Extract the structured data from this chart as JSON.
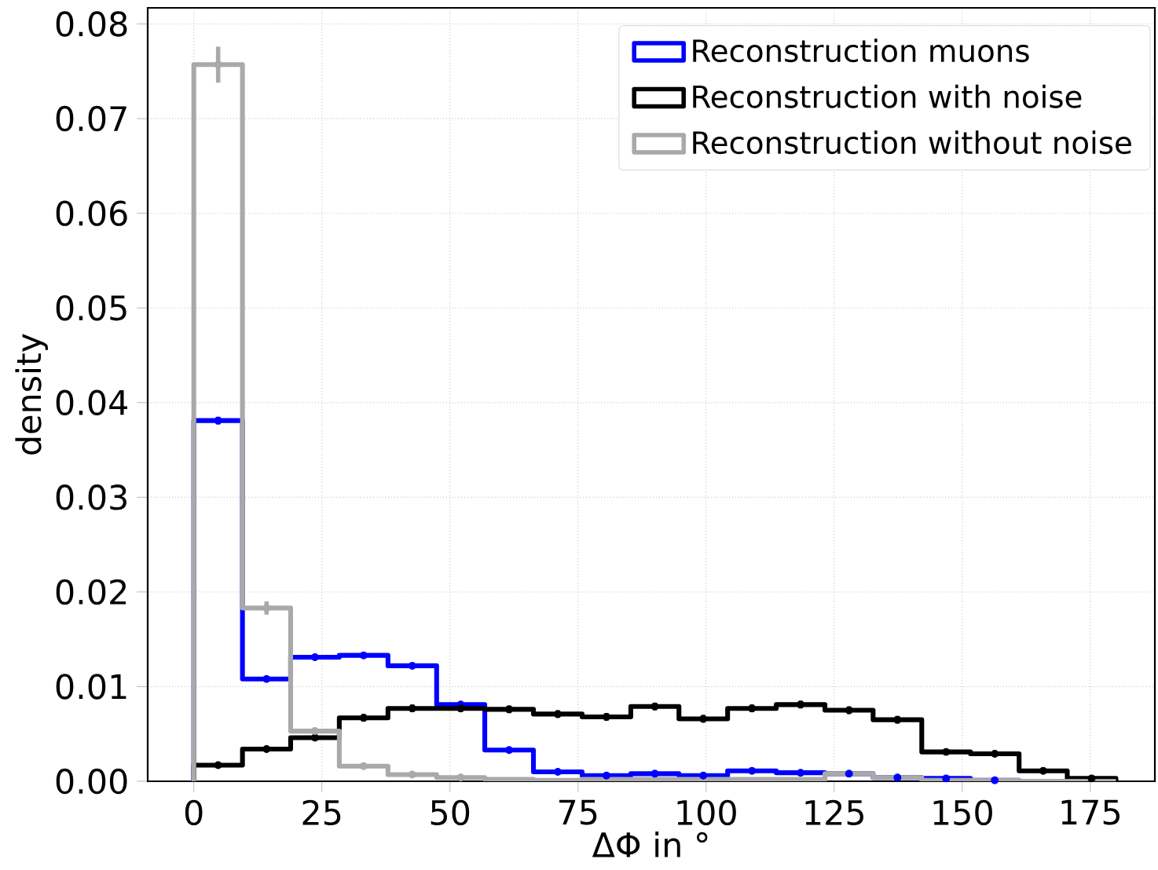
{
  "chart_data": {
    "type": "histogram",
    "xlabel": "ΔΦ in °",
    "ylabel": "density",
    "bins": [
      0,
      9.5,
      18.9,
      28.4,
      37.9,
      47.4,
      56.8,
      66.3,
      75.8,
      85.3,
      94.7,
      104.2,
      113.7,
      123.2,
      132.6,
      142.1,
      151.6,
      161.1,
      170.5,
      180
    ],
    "series": [
      {
        "name": "Reconstruction muons",
        "color": "#0000ff",
        "values": [
          0.0381,
          0.0108,
          0.0131,
          0.0133,
          0.0122,
          0.0081,
          0.0033,
          0.001,
          0.0006,
          0.0008,
          0.0006,
          0.0011,
          0.0009,
          0.0008,
          0.0004,
          0.0003,
          0.0001,
          0,
          0
        ]
      },
      {
        "name": "Reconstruction with noise",
        "color": "#000000",
        "values": [
          0.0017,
          0.0034,
          0.0046,
          0.0067,
          0.0077,
          0.0077,
          0.0076,
          0.0071,
          0.0068,
          0.0079,
          0.0066,
          0.0077,
          0.0081,
          0.0075,
          0.0065,
          0.0031,
          0.0029,
          0.0011,
          0.0003
        ]
      },
      {
        "name": "Reconstruction without noise",
        "color": "#a9a9a9",
        "values": [
          0.0757,
          0.0183,
          0.0053,
          0.0016,
          0.0007,
          0.0004,
          0.0002,
          0.0001,
          0.0002,
          0.0002,
          0.0002,
          0.0002,
          0.0002,
          0.0008,
          0.0004,
          0.0001,
          0.0001,
          0,
          0
        ]
      },
      {
        "type": "scatter",
        "color": "#0000ff",
        "x": [
          4.75,
          14.2,
          23.65,
          33.15,
          42.65,
          52.1,
          61.55,
          71.05,
          80.55,
          90,
          99.45,
          108.95,
          118.45,
          127.9,
          137.35,
          146.85,
          156.35
        ],
        "values": [
          0.0381,
          0.0108,
          0.0131,
          0.0133,
          0.0122,
          0.0081,
          0.0033,
          0.001,
          0.0006,
          0.0008,
          0.0006,
          0.0011,
          0.0009,
          0.0008,
          0.0004,
          0.0003,
          0.0001
        ],
        "errors": [
          0.0004,
          null,
          null,
          null,
          null,
          null,
          null,
          null,
          null,
          null,
          null,
          null,
          null,
          null,
          null,
          null,
          null
        ]
      },
      {
        "type": "scatter",
        "color": "#000000",
        "x": [
          4.75,
          14.2,
          23.65,
          33.15,
          42.65,
          52.1,
          61.55,
          71.05,
          80.55,
          90,
          99.45,
          108.95,
          118.45,
          127.9,
          137.35,
          146.85,
          156.35,
          165.8,
          175.25
        ],
        "values": [
          0.0017,
          0.0034,
          0.0046,
          0.0067,
          0.0077,
          0.0077,
          0.0076,
          0.0071,
          0.0068,
          0.0079,
          0.0066,
          0.0077,
          0.0081,
          0.0075,
          0.0065,
          0.0031,
          0.0029,
          0.0011,
          0.0003
        ],
        "errors": [
          null,
          null,
          null,
          0.0004,
          0.0004,
          0.0004,
          0.0004,
          0.0004,
          0.0004,
          0.0004,
          0.0004,
          0.0004,
          0.0004,
          0.0004,
          0.0004,
          null,
          null,
          null,
          null
        ]
      },
      {
        "type": "scatter",
        "color": "#a9a9a9",
        "x": [
          4.75,
          14.2,
          23.65,
          33.15,
          42.65,
          52.1
        ],
        "values": [
          0.0757,
          0.0183,
          0.0053,
          0.0016,
          0.0007,
          0.0004
        ],
        "errors": [
          0.0019,
          0.0007,
          null,
          null,
          null,
          null
        ]
      }
    ],
    "xlim": [
      -9,
      187.6
    ],
    "ylim": [
      0,
      0.0817
    ],
    "xticks": [
      0,
      25,
      50,
      75,
      100,
      125,
      150,
      175
    ],
    "yticks": [
      {
        "value": 0,
        "label": "0.00"
      },
      {
        "value": 0.01,
        "label": "0.01"
      },
      {
        "value": 0.02,
        "label": "0.02"
      },
      {
        "value": 0.03,
        "label": "0.03"
      },
      {
        "value": 0.04,
        "label": "0.04"
      },
      {
        "value": 0.05,
        "label": "0.05"
      },
      {
        "value": 0.06,
        "label": "0.06"
      },
      {
        "value": 0.07,
        "label": "0.07"
      },
      {
        "value": 0.08,
        "label": "0.08"
      }
    ],
    "grid": true,
    "legend": "top right",
    "marker": "circle"
  }
}
